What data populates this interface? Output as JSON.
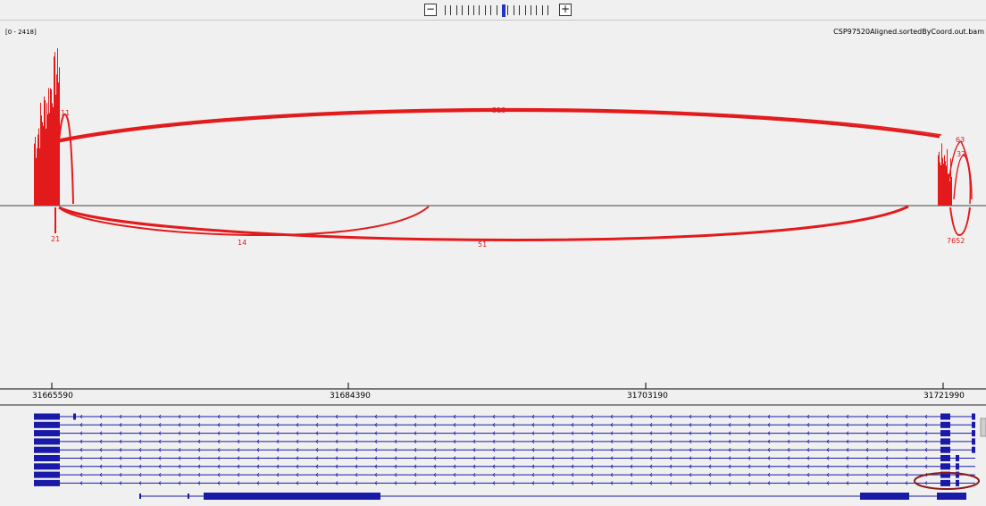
{
  "toolbar": {
    "zoom_out_label": "−",
    "zoom_in_label": "+",
    "zoom_ticks": 19,
    "zoom_active_index": 10
  },
  "track": {
    "name": "CSP97520Aligned.sortedByCoord.out.bam",
    "data_range": "[0 - 2418]"
  },
  "junctions": {
    "above": [
      {
        "label": "11"
      },
      {
        "label": "313"
      },
      {
        "label": "63"
      },
      {
        "label": "32"
      }
    ],
    "below": [
      {
        "label": "21"
      },
      {
        "label": "14"
      },
      {
        "label": "51"
      },
      {
        "label": "7652"
      }
    ]
  },
  "ruler": {
    "ticks": [
      {
        "label": "31665590"
      },
      {
        "label": "31684390"
      },
      {
        "label": "31703190"
      },
      {
        "label": "31721990"
      }
    ]
  },
  "colors": {
    "coverage": "#e31a1c",
    "gene": "#1a1aa8",
    "highlight": "#8b1a1a",
    "background": "#f0f0f0"
  },
  "transcripts": {
    "count": 9,
    "extra_count": 1
  }
}
